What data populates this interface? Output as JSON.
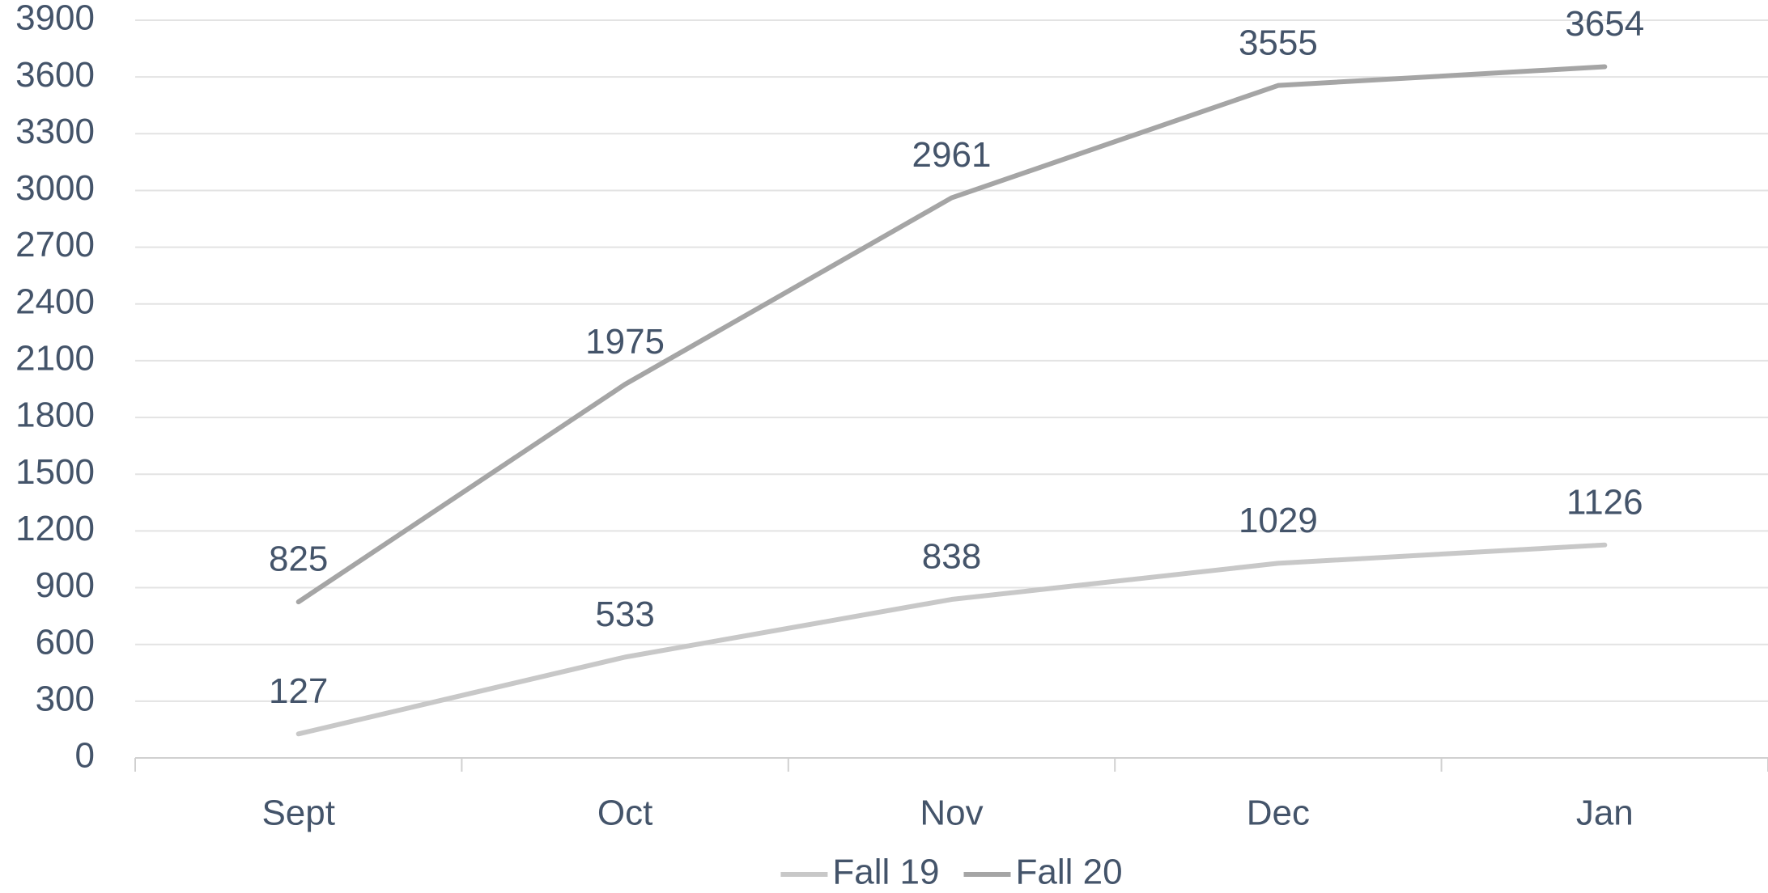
{
  "chart_data": {
    "type": "line",
    "categories": [
      "Sept",
      "Oct",
      "Nov",
      "Dec",
      "Jan"
    ],
    "series": [
      {
        "name": "Fall 19",
        "color": "#c8c8c8",
        "values": [
          127,
          533,
          838,
          1029,
          1126
        ]
      },
      {
        "name": "Fall 20",
        "color": "#a5a5a5",
        "values": [
          825,
          1975,
          2961,
          3555,
          3654
        ]
      }
    ],
    "ylim": [
      0,
      3900
    ],
    "yticks": [
      0,
      300,
      600,
      900,
      1200,
      1500,
      1800,
      2100,
      2400,
      2700,
      3000,
      3300,
      3600,
      3900
    ],
    "grid": true,
    "legend": "bottom"
  }
}
